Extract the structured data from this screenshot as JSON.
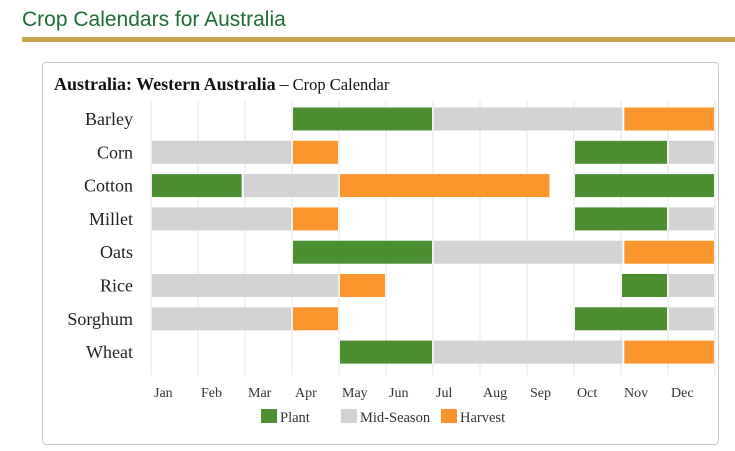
{
  "page_title": "Crop Calendars for Australia",
  "chart_data": {
    "type": "gantt",
    "title_region": "Australia: Western Australia",
    "title_dash": "–",
    "title_suffix": "Crop Calendar",
    "months": [
      "Jan",
      "Feb",
      "Mar",
      "Apr",
      "May",
      "Jun",
      "Jul",
      "Aug",
      "Sep",
      "Oct",
      "Nov",
      "Dec"
    ],
    "x_range_months": [
      0,
      12
    ],
    "colors": {
      "Plant": "#4b8f32",
      "Mid-Season": "#d4d2d4",
      "Harvest": "#fb952e"
    },
    "legend": [
      "Plant",
      "Mid-Season",
      "Harvest"
    ],
    "legend_position": "bottom",
    "crops": [
      {
        "name": "Barley",
        "segments": [
          {
            "phase": "Plant",
            "start": 3.0,
            "end": 6.0
          },
          {
            "phase": "Mid-Season",
            "start": 6.0,
            "end": 10.05
          },
          {
            "phase": "Harvest",
            "start": 10.05,
            "end": 12.0
          }
        ]
      },
      {
        "name": "Corn",
        "segments": [
          {
            "phase": "Mid-Season",
            "start": 0.0,
            "end": 3.0
          },
          {
            "phase": "Harvest",
            "start": 3.0,
            "end": 4.0
          },
          {
            "phase": "Plant",
            "start": 9.0,
            "end": 11.0
          },
          {
            "phase": "Mid-Season",
            "start": 11.0,
            "end": 12.0
          }
        ]
      },
      {
        "name": "Cotton",
        "segments": [
          {
            "phase": "Plant",
            "start": 0.0,
            "end": 1.95
          },
          {
            "phase": "Mid-Season",
            "start": 1.95,
            "end": 4.0
          },
          {
            "phase": "Harvest",
            "start": 4.0,
            "end": 8.5
          },
          {
            "phase": "Plant",
            "start": 9.0,
            "end": 12.0
          }
        ]
      },
      {
        "name": "Millet",
        "segments": [
          {
            "phase": "Mid-Season",
            "start": 0.0,
            "end": 3.0
          },
          {
            "phase": "Harvest",
            "start": 3.0,
            "end": 4.0
          },
          {
            "phase": "Plant",
            "start": 9.0,
            "end": 11.0
          },
          {
            "phase": "Mid-Season",
            "start": 11.0,
            "end": 12.0
          }
        ]
      },
      {
        "name": "Oats",
        "segments": [
          {
            "phase": "Plant",
            "start": 3.0,
            "end": 6.0
          },
          {
            "phase": "Mid-Season",
            "start": 6.0,
            "end": 10.05
          },
          {
            "phase": "Harvest",
            "start": 10.05,
            "end": 12.0
          }
        ]
      },
      {
        "name": "Rice",
        "segments": [
          {
            "phase": "Mid-Season",
            "start": 0.0,
            "end": 4.0
          },
          {
            "phase": "Harvest",
            "start": 4.0,
            "end": 5.0
          },
          {
            "phase": "Plant",
            "start": 10.0,
            "end": 11.0
          },
          {
            "phase": "Mid-Season",
            "start": 11.0,
            "end": 12.0
          }
        ]
      },
      {
        "name": "Sorghum",
        "segments": [
          {
            "phase": "Mid-Season",
            "start": 0.0,
            "end": 3.0
          },
          {
            "phase": "Harvest",
            "start": 3.0,
            "end": 4.0
          },
          {
            "phase": "Plant",
            "start": 9.0,
            "end": 11.0
          },
          {
            "phase": "Mid-Season",
            "start": 11.0,
            "end": 12.0
          }
        ]
      },
      {
        "name": "Wheat",
        "segments": [
          {
            "phase": "Plant",
            "start": 4.0,
            "end": 6.0
          },
          {
            "phase": "Mid-Season",
            "start": 6.0,
            "end": 10.05
          },
          {
            "phase": "Harvest",
            "start": 10.05,
            "end": 12.0
          }
        ]
      }
    ]
  }
}
